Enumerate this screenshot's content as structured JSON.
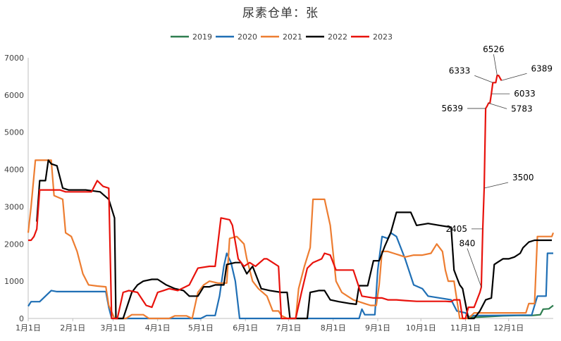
{
  "chart_data": {
    "type": "line",
    "title": "尿素仓单：张",
    "xlabel": "",
    "ylabel": "",
    "x_range_days": [
      0,
      365
    ],
    "ylim": [
      0,
      7000
    ],
    "yticks": [
      0,
      1000,
      2000,
      3000,
      4000,
      5000,
      6000,
      7000
    ],
    "xticks": [
      {
        "label": "1月1日",
        "day": 0
      },
      {
        "label": "2月1日",
        "day": 31
      },
      {
        "label": "3月1日",
        "day": 59
      },
      {
        "label": "4月1日",
        "day": 90
      },
      {
        "label": "5月1日",
        "day": 120
      },
      {
        "label": "6月1日",
        "day": 151
      },
      {
        "label": "7月1日",
        "day": 181
      },
      {
        "label": "8月1日",
        "day": 212
      },
      {
        "label": "9月1日",
        "day": 243
      },
      {
        "label": "10月1日",
        "day": 273
      },
      {
        "label": "11月1日",
        "day": 304
      },
      {
        "label": "12月1日",
        "day": 334
      }
    ],
    "grid": false,
    "legend_position": "top-center",
    "series": [
      {
        "name": "2019",
        "color": "#2e7d4f",
        "points": [
          [
            304,
            0
          ],
          [
            310,
            30
          ],
          [
            320,
            50
          ],
          [
            330,
            70
          ],
          [
            340,
            80
          ],
          [
            350,
            80
          ],
          [
            356,
            100
          ],
          [
            358,
            250
          ],
          [
            362,
            260
          ],
          [
            365,
            350
          ]
        ]
      },
      {
        "name": "2020",
        "color": "#1f6fb5",
        "points": [
          [
            0,
            330
          ],
          [
            2,
            450
          ],
          [
            8,
            450
          ],
          [
            12,
            600
          ],
          [
            16,
            750
          ],
          [
            20,
            720
          ],
          [
            40,
            720
          ],
          [
            50,
            720
          ],
          [
            54,
            720
          ],
          [
            56,
            300
          ],
          [
            58,
            0
          ],
          [
            120,
            0
          ],
          [
            124,
            80
          ],
          [
            130,
            80
          ],
          [
            133,
            600
          ],
          [
            136,
            1400
          ],
          [
            138,
            1750
          ],
          [
            141,
            1500
          ],
          [
            144,
            1000
          ],
          [
            147,
            0
          ],
          [
            230,
            0
          ],
          [
            232,
            250
          ],
          [
            234,
            100
          ],
          [
            241,
            100
          ],
          [
            243,
            1300
          ],
          [
            246,
            2200
          ],
          [
            250,
            2150
          ],
          [
            252,
            2300
          ],
          [
            256,
            2200
          ],
          [
            262,
            1600
          ],
          [
            268,
            900
          ],
          [
            274,
            800
          ],
          [
            278,
            600
          ],
          [
            286,
            550
          ],
          [
            294,
            500
          ],
          [
            298,
            200
          ],
          [
            304,
            150
          ],
          [
            306,
            50
          ],
          [
            310,
            80
          ],
          [
            320,
            80
          ],
          [
            350,
            90
          ],
          [
            354,
            600
          ],
          [
            360,
            600
          ],
          [
            361,
            1750
          ],
          [
            365,
            1750
          ]
        ]
      },
      {
        "name": "2021",
        "color": "#ed7d31",
        "points": [
          [
            0,
            2300
          ],
          [
            2,
            3000
          ],
          [
            5,
            4250
          ],
          [
            10,
            4250
          ],
          [
            16,
            4250
          ],
          [
            18,
            3300
          ],
          [
            24,
            3200
          ],
          [
            26,
            2300
          ],
          [
            30,
            2200
          ],
          [
            34,
            1800
          ],
          [
            38,
            1200
          ],
          [
            42,
            900
          ],
          [
            48,
            870
          ],
          [
            54,
            850
          ],
          [
            56,
            350
          ],
          [
            60,
            0
          ],
          [
            68,
            0
          ],
          [
            72,
            100
          ],
          [
            80,
            100
          ],
          [
            84,
            0
          ],
          [
            98,
            0
          ],
          [
            102,
            70
          ],
          [
            110,
            70
          ],
          [
            114,
            0
          ],
          [
            118,
            700
          ],
          [
            122,
            900
          ],
          [
            126,
            1000
          ],
          [
            132,
            950
          ],
          [
            138,
            950
          ],
          [
            140,
            2150
          ],
          [
            145,
            2200
          ],
          [
            150,
            2000
          ],
          [
            152,
            1600
          ],
          [
            156,
            1000
          ],
          [
            160,
            800
          ],
          [
            166,
            600
          ],
          [
            170,
            200
          ],
          [
            174,
            200
          ],
          [
            176,
            80
          ],
          [
            180,
            0
          ],
          [
            186,
            0
          ],
          [
            188,
            800
          ],
          [
            192,
            1400
          ],
          [
            196,
            1900
          ],
          [
            198,
            3200
          ],
          [
            206,
            3200
          ],
          [
            210,
            2500
          ],
          [
            214,
            1000
          ],
          [
            218,
            700
          ],
          [
            222,
            600
          ],
          [
            226,
            500
          ],
          [
            234,
            400
          ],
          [
            238,
            350
          ],
          [
            242,
            350
          ],
          [
            244,
            900
          ],
          [
            246,
            1800
          ],
          [
            250,
            1800
          ],
          [
            254,
            1750
          ],
          [
            258,
            1700
          ],
          [
            262,
            1650
          ],
          [
            268,
            1700
          ],
          [
            274,
            1700
          ],
          [
            280,
            1750
          ],
          [
            284,
            2000
          ],
          [
            288,
            1800
          ],
          [
            290,
            1300
          ],
          [
            292,
            1000
          ],
          [
            296,
            1000
          ],
          [
            300,
            0
          ],
          [
            306,
            0
          ],
          [
            310,
            150
          ],
          [
            316,
            150
          ],
          [
            330,
            150
          ],
          [
            346,
            150
          ],
          [
            348,
            400
          ],
          [
            352,
            400
          ],
          [
            354,
            2200
          ],
          [
            358,
            2200
          ],
          [
            364,
            2200
          ],
          [
            365,
            2300
          ]
        ]
      },
      {
        "name": "2022",
        "color": "#000000",
        "points": [
          [
            6,
            2600
          ],
          [
            8,
            3700
          ],
          [
            12,
            3700
          ],
          [
            14,
            4250
          ],
          [
            16,
            4150
          ],
          [
            20,
            4100
          ],
          [
            24,
            3500
          ],
          [
            28,
            3450
          ],
          [
            40,
            3450
          ],
          [
            50,
            3400
          ],
          [
            56,
            3200
          ],
          [
            60,
            2700
          ],
          [
            61,
            0
          ],
          [
            66,
            0
          ],
          [
            72,
            700
          ],
          [
            76,
            900
          ],
          [
            80,
            1000
          ],
          [
            86,
            1050
          ],
          [
            90,
            1050
          ],
          [
            96,
            900
          ],
          [
            102,
            800
          ],
          [
            108,
            750
          ],
          [
            112,
            600
          ],
          [
            118,
            600
          ],
          [
            122,
            850
          ],
          [
            126,
            850
          ],
          [
            130,
            900
          ],
          [
            136,
            900
          ],
          [
            138,
            1450
          ],
          [
            144,
            1500
          ],
          [
            148,
            1500
          ],
          [
            152,
            1200
          ],
          [
            156,
            1400
          ],
          [
            162,
            800
          ],
          [
            168,
            750
          ],
          [
            176,
            700
          ],
          [
            180,
            700
          ],
          [
            182,
            0
          ],
          [
            194,
            0
          ],
          [
            196,
            700
          ],
          [
            202,
            750
          ],
          [
            206,
            750
          ],
          [
            210,
            500
          ],
          [
            216,
            450
          ],
          [
            224,
            400
          ],
          [
            228,
            380
          ],
          [
            230,
            880
          ],
          [
            236,
            880
          ],
          [
            240,
            1550
          ],
          [
            244,
            1550
          ],
          [
            248,
            1950
          ],
          [
            252,
            2300
          ],
          [
            256,
            2850
          ],
          [
            260,
            2850
          ],
          [
            266,
            2850
          ],
          [
            270,
            2500
          ],
          [
            278,
            2550
          ],
          [
            286,
            2500
          ],
          [
            294,
            2450
          ],
          [
            296,
            1300
          ],
          [
            298,
            1100
          ],
          [
            300,
            900
          ],
          [
            302,
            800
          ],
          [
            306,
            0
          ],
          [
            310,
            0
          ],
          [
            314,
            200
          ],
          [
            318,
            500
          ],
          [
            322,
            550
          ],
          [
            324,
            1450
          ],
          [
            326,
            1500
          ],
          [
            330,
            1600
          ],
          [
            334,
            1600
          ],
          [
            338,
            1650
          ],
          [
            342,
            1750
          ],
          [
            344,
            1900
          ],
          [
            348,
            2050
          ],
          [
            352,
            2100
          ],
          [
            358,
            2100
          ],
          [
            364,
            2100
          ]
        ]
      },
      {
        "name": "2023",
        "color": "#e8120c",
        "points": [
          [
            0,
            2100
          ],
          [
            2,
            2100
          ],
          [
            4,
            2200
          ],
          [
            6,
            2400
          ],
          [
            8,
            3450
          ],
          [
            14,
            3450
          ],
          [
            18,
            3450
          ],
          [
            22,
            3450
          ],
          [
            26,
            3400
          ],
          [
            30,
            3400
          ],
          [
            40,
            3400
          ],
          [
            44,
            3400
          ],
          [
            48,
            3700
          ],
          [
            52,
            3550
          ],
          [
            56,
            3500
          ],
          [
            58,
            0
          ],
          [
            60,
            0
          ],
          [
            62,
            0
          ],
          [
            66,
            700
          ],
          [
            70,
            750
          ],
          [
            76,
            700
          ],
          [
            82,
            350
          ],
          [
            86,
            300
          ],
          [
            90,
            700
          ],
          [
            94,
            750
          ],
          [
            98,
            800
          ],
          [
            104,
            750
          ],
          [
            112,
            900
          ],
          [
            118,
            1350
          ],
          [
            126,
            1400
          ],
          [
            130,
            1400
          ],
          [
            134,
            2700
          ],
          [
            140,
            2650
          ],
          [
            142,
            2500
          ],
          [
            146,
            1600
          ],
          [
            150,
            1400
          ],
          [
            154,
            1500
          ],
          [
            158,
            1400
          ],
          [
            164,
            1600
          ],
          [
            166,
            1600
          ],
          [
            170,
            1500
          ],
          [
            174,
            1400
          ],
          [
            176,
            0
          ],
          [
            186,
            0
          ],
          [
            190,
            700
          ],
          [
            194,
            1350
          ],
          [
            198,
            1500
          ],
          [
            204,
            1600
          ],
          [
            206,
            1750
          ],
          [
            210,
            1700
          ],
          [
            214,
            1300
          ],
          [
            226,
            1300
          ],
          [
            232,
            600
          ],
          [
            240,
            550
          ],
          [
            246,
            550
          ],
          [
            250,
            500
          ],
          [
            256,
            500
          ],
          [
            262,
            480
          ],
          [
            270,
            460
          ],
          [
            280,
            460
          ],
          [
            290,
            460
          ],
          [
            294,
            450
          ],
          [
            296,
            500
          ],
          [
            300,
            500
          ],
          [
            302,
            0
          ],
          [
            304,
            0
          ],
          [
            306,
            300
          ],
          [
            310,
            300
          ],
          [
            314,
            700
          ],
          [
            315,
            840
          ],
          [
            316,
            2405
          ],
          [
            317,
            3500
          ],
          [
            318,
            5639
          ],
          [
            319,
            5700
          ],
          [
            320,
            5783
          ],
          [
            321,
            5783
          ],
          [
            322,
            6033
          ],
          [
            323,
            6333
          ],
          [
            325,
            6333
          ],
          [
            326,
            6526
          ],
          [
            327,
            6526
          ],
          [
            329,
            6389
          ]
        ]
      }
    ],
    "annotations": [
      {
        "text": "6526",
        "day": 326,
        "value": 6526
      },
      {
        "text": "6333",
        "day": 323,
        "value": 6333
      },
      {
        "text": "6389",
        "day": 329,
        "value": 6389
      },
      {
        "text": "6033",
        "day": 322,
        "value": 6033
      },
      {
        "text": "5639",
        "day": 318,
        "value": 5639
      },
      {
        "text": "5783",
        "day": 320,
        "value": 5783
      },
      {
        "text": "3500",
        "day": 317,
        "value": 3500
      },
      {
        "text": "2405",
        "day": 316,
        "value": 2405
      },
      {
        "text": "840",
        "day": 315,
        "value": 840
      }
    ]
  }
}
